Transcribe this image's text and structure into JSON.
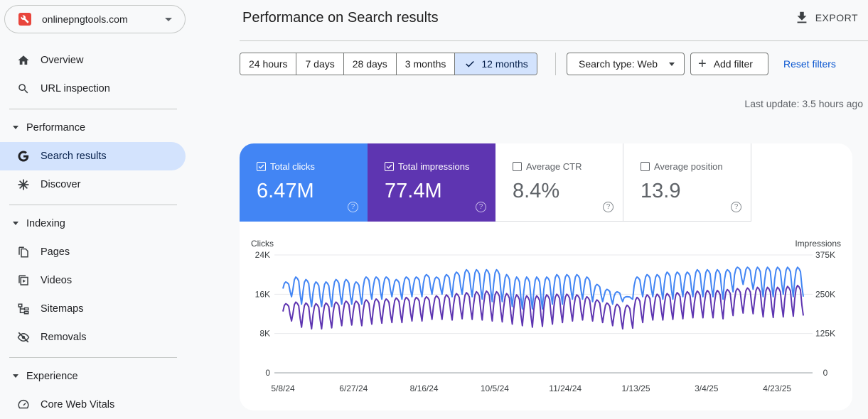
{
  "property": {
    "name": "onlinepngtools.com"
  },
  "sidebar": {
    "top_items": [
      {
        "label": "Overview",
        "icon": "home-icon"
      },
      {
        "label": "URL inspection",
        "icon": "search-icon"
      }
    ],
    "sections": [
      {
        "label": "Performance",
        "items": [
          {
            "label": "Search results",
            "icon": "google-g-icon",
            "active": true
          },
          {
            "label": "Discover",
            "icon": "asterisk-icon"
          }
        ]
      },
      {
        "label": "Indexing",
        "items": [
          {
            "label": "Pages",
            "icon": "pages-icon"
          },
          {
            "label": "Videos",
            "icon": "video-icon"
          },
          {
            "label": "Sitemaps",
            "icon": "sitemap-icon"
          },
          {
            "label": "Removals",
            "icon": "eye-off-icon"
          }
        ]
      },
      {
        "label": "Experience",
        "items": [
          {
            "label": "Core Web Vitals",
            "icon": "gauge-icon"
          }
        ]
      }
    ]
  },
  "header": {
    "title": "Performance on Search results",
    "export_label": "EXPORT"
  },
  "filters": {
    "date_ranges": [
      "24 hours",
      "7 days",
      "28 days",
      "3 months",
      "12 months"
    ],
    "selected_range": "12 months",
    "search_type": "Search type: Web",
    "add_filter": "Add filter",
    "reset": "Reset filters",
    "last_update": "Last update: 3.5 hours ago"
  },
  "metrics": [
    {
      "label": "Total clicks",
      "value": "6.47M",
      "checked": true,
      "color": "#4285f4"
    },
    {
      "label": "Total impressions",
      "value": "77.4M",
      "checked": true,
      "color": "#5e35b1"
    },
    {
      "label": "Average CTR",
      "value": "8.4%",
      "checked": false
    },
    {
      "label": "Average position",
      "value": "13.9",
      "checked": false
    }
  ],
  "chart_data": {
    "type": "line",
    "left_axis_label": "Clicks",
    "right_axis_label": "Impressions",
    "left_ticks": [
      "24K",
      "16K",
      "8K",
      "0"
    ],
    "right_ticks": [
      "375K",
      "250K",
      "125K",
      "0"
    ],
    "x_ticks": [
      "5/8/24",
      "6/27/24",
      "8/16/24",
      "10/5/24",
      "11/24/24",
      "1/13/25",
      "3/4/25",
      "4/23/25"
    ],
    "ylim_clicks": [
      0,
      24000
    ],
    "ylim_impressions": [
      0,
      375000
    ],
    "series": [
      {
        "name": "Clicks",
        "color": "#4285f4",
        "weekly_low": [
          15500,
          14000,
          13500,
          13500,
          13500,
          14000,
          14000,
          14000,
          15000,
          15000,
          15500,
          15000,
          15500,
          15500,
          16000,
          16000,
          15500,
          16000,
          15500,
          15000,
          14500,
          14500,
          13500,
          13000,
          13000,
          13000,
          14000,
          14000,
          15000,
          15000,
          14500,
          14500,
          14000,
          14500,
          15000,
          15500,
          15500,
          15000,
          15000,
          15500,
          15500,
          15500,
          15500,
          15000,
          16500,
          18000,
          17000,
          15500,
          15500,
          16000,
          15500,
          15500
        ],
        "weekly_high": [
          18500,
          19500,
          19000,
          18500,
          18500,
          19000,
          19000,
          18500,
          19500,
          19500,
          19500,
          19000,
          19500,
          19500,
          20000,
          19500,
          20000,
          20500,
          21000,
          21000,
          21000,
          21000,
          20000,
          19500,
          19500,
          19500,
          19500,
          20000,
          20000,
          20000,
          19500,
          18000,
          17000,
          16500,
          15500,
          19500,
          20000,
          20000,
          20500,
          20500,
          20500,
          21000,
          21000,
          21000,
          21000,
          21500,
          21500,
          21500,
          21500,
          21500,
          21500,
          21500
        ]
      },
      {
        "name": "Impressions",
        "color": "#5e35b1",
        "weekly_low": [
          165000,
          145000,
          140000,
          140000,
          143000,
          150000,
          152000,
          150000,
          155000,
          158000,
          160000,
          160000,
          165000,
          165000,
          170000,
          170000,
          168000,
          172000,
          170000,
          168000,
          165000,
          162000,
          155000,
          150000,
          145000,
          148000,
          155000,
          160000,
          165000,
          168000,
          165000,
          160000,
          150000,
          140000,
          142000,
          160000,
          168000,
          168000,
          170000,
          172000,
          175000,
          175000,
          175000,
          172000,
          182000,
          190000,
          188000,
          178000,
          176000,
          178000,
          180000,
          182000
        ],
        "weekly_high": [
          220000,
          225000,
          222000,
          220000,
          222000,
          225000,
          228000,
          228000,
          232000,
          235000,
          235000,
          238000,
          240000,
          240000,
          242000,
          245000,
          248000,
          252000,
          255000,
          258000,
          260000,
          258000,
          252000,
          248000,
          245000,
          245000,
          248000,
          250000,
          250000,
          248000,
          242000,
          232000,
          222000,
          218000,
          215000,
          240000,
          248000,
          250000,
          252000,
          255000,
          258000,
          260000,
          262000,
          262000,
          265000,
          268000,
          270000,
          272000,
          272000,
          272000,
          275000,
          278000
        ]
      }
    ]
  }
}
